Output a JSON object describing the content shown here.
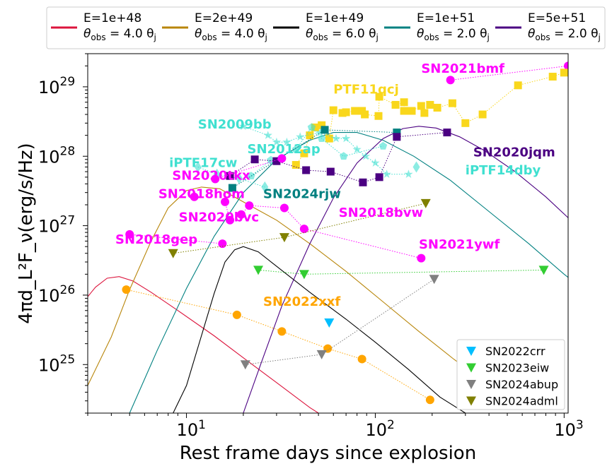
{
  "chart_data": {
    "type": "scatter",
    "xlabel": "Rest frame days since explosion",
    "ylabel": "4πd_L²F_ν(erg/s/Hz)",
    "xscale": "log",
    "yscale": "log",
    "xlim": [
      3,
      1050
    ],
    "ylim": [
      2e+24,
      3e+29
    ],
    "xticks": [
      {
        "value": 10,
        "label": "10",
        "sup": "1"
      },
      {
        "value": 100,
        "label": "10",
        "sup": "2"
      },
      {
        "value": 1000,
        "label": "10",
        "sup": "3"
      }
    ],
    "yticks": [
      {
        "value": 1e+25,
        "label": "10",
        "sup": "25"
      },
      {
        "value": 1e+26,
        "label": "10",
        "sup": "26"
      },
      {
        "value": 1e+27,
        "label": "10",
        "sup": "27"
      },
      {
        "value": 1e+28,
        "label": "10",
        "sup": "28"
      },
      {
        "value": 1e+29,
        "label": "10",
        "sup": "29"
      }
    ],
    "models": [
      {
        "name": "E=1e+48",
        "theta": "θobs = 4.0 θj",
        "color": "#dc143c",
        "points": [
          [
            3,
            9.5e+25
          ],
          [
            3.3,
            1.3e+26
          ],
          [
            3.8,
            1.75e+26
          ],
          [
            4.4,
            1.85e+26
          ],
          [
            5.2,
            1.6e+26
          ],
          [
            6.5,
            1.1e+26
          ],
          [
            9,
            6e+25
          ],
          [
            14,
            2.6e+25
          ],
          [
            20,
            1.25e+25
          ],
          [
            30,
            5.5e+24
          ],
          [
            45,
            2.4e+24
          ],
          [
            50,
            2e+24
          ]
        ]
      },
      {
        "name": "E=2e+49",
        "theta": "θobs = 4.0 θj",
        "color": "#b8860b",
        "points": [
          [
            3,
            5e+24
          ],
          [
            4,
            2.5e+25
          ],
          [
            5,
            1.2e+26
          ],
          [
            6.5,
            6e+26
          ],
          [
            8,
            1.8e+27
          ],
          [
            10,
            3.2e+27
          ],
          [
            12,
            3.6e+27
          ],
          [
            15,
            3.4e+27
          ],
          [
            20,
            2.2e+27
          ],
          [
            30,
            1.2e+27
          ],
          [
            45,
            5.5e+26
          ],
          [
            70,
            2.2e+26
          ],
          [
            110,
            8e+25
          ],
          [
            170,
            3e+25
          ],
          [
            260,
            1.2e+25
          ],
          [
            400,
            5e+24
          ],
          [
            500,
            3e+24
          ]
        ]
      },
      {
        "name": "E=1e+49",
        "theta": "θobs = 6.0 θj",
        "color": "#000000",
        "points": [
          [
            8.5,
            2e+24
          ],
          [
            10,
            5e+24
          ],
          [
            12,
            2.6e+25
          ],
          [
            14,
            1.05e+26
          ],
          [
            16,
            3e+26
          ],
          [
            18,
            4.5e+26
          ],
          [
            20,
            5e+26
          ],
          [
            24,
            4.2e+26
          ],
          [
            30,
            2.6e+26
          ],
          [
            45,
            1.1e+26
          ],
          [
            70,
            4.5e+25
          ],
          [
            100,
            2.1e+25
          ],
          [
            150,
            8.5e+24
          ],
          [
            220,
            3.4e+24
          ],
          [
            300,
            2e+24
          ]
        ]
      },
      {
        "name": "E=1e+51",
        "theta": "θobs = 2.0 θj",
        "color": "#008080",
        "points": [
          [
            5,
            2e+24
          ],
          [
            7,
            1.6e+25
          ],
          [
            10,
            1.25e+26
          ],
          [
            14,
            7e+26
          ],
          [
            20,
            3e+27
          ],
          [
            30,
            9e+27
          ],
          [
            45,
            1.7e+28
          ],
          [
            60,
            2.2e+28
          ],
          [
            80,
            2.2e+28
          ],
          [
            110,
            1.7e+28
          ],
          [
            160,
            1e+28
          ],
          [
            250,
            4.5e+27
          ],
          [
            400,
            1.6e+27
          ],
          [
            650,
            5.5e+26
          ],
          [
            1000,
            2e+26
          ],
          [
            1050,
            1.8e+26
          ]
        ]
      },
      {
        "name": "E=5e+51",
        "theta": "θobs = 2.0 θj",
        "color": "#4b0082",
        "points": [
          [
            20,
            2e+24
          ],
          [
            25,
            1.1e+25
          ],
          [
            32,
            7e+25
          ],
          [
            45,
            5.5e+26
          ],
          [
            60,
            2.5e+27
          ],
          [
            80,
            8e+27
          ],
          [
            110,
            1.8e+28
          ],
          [
            140,
            2.5e+28
          ],
          [
            170,
            2.7e+28
          ],
          [
            210,
            2.55e+28
          ],
          [
            280,
            1.9e+28
          ],
          [
            380,
            1.2e+28
          ],
          [
            550,
            6e+27
          ],
          [
            800,
            2.6e+27
          ],
          [
            1050,
            1.3e+27
          ]
        ]
      }
    ],
    "series": [
      {
        "name": "SN2021bmf",
        "color": "#ff00ff",
        "marker": "circle",
        "line": true,
        "points": [
          [
            250,
            1.25e+29
          ],
          [
            1050,
            2e+29
          ]
        ]
      },
      {
        "name": "PTF11qcj",
        "color": "#f9d71c",
        "marker": "square",
        "line": true,
        "points": [
          [
            38,
            7.5e+27
          ],
          [
            42,
            1.1e+28
          ],
          [
            45,
            2e+28
          ],
          [
            48,
            2.6e+28
          ],
          [
            52,
            2.8e+28
          ],
          [
            57,
            1.8e+28
          ],
          [
            60,
            4.6e+28
          ],
          [
            67,
            4.2e+28
          ],
          [
            70,
            4.3e+28
          ],
          [
            78,
            4.5e+28
          ],
          [
            85,
            4.5e+28
          ],
          [
            88,
            4e+28
          ],
          [
            104,
            3.8e+28
          ],
          [
            105,
            7.2e+28
          ],
          [
            128,
            5.5e+28
          ],
          [
            142,
            6e+28
          ],
          [
            142,
            4.5e+28
          ],
          [
            156,
            4.5e+28
          ],
          [
            175,
            5.3e+28
          ],
          [
            182,
            4.2e+28
          ],
          [
            195,
            5.5e+28
          ],
          [
            213,
            5e+28
          ],
          [
            256,
            5.8e+28
          ],
          [
            300,
            3e+28
          ],
          [
            370,
            4e+28
          ],
          [
            570,
            1.05e+29
          ],
          [
            870,
            1.4e+29
          ],
          [
            1000,
            1.6e+29
          ]
        ]
      },
      {
        "name": "SN2009bb",
        "color": "#40e0d0",
        "marker": "star",
        "line": true,
        "points": [
          [
            20,
            2.7e+28
          ],
          [
            27,
            2e+28
          ],
          [
            30,
            1.6e+28
          ],
          [
            34,
            1.6e+28
          ],
          [
            40,
            1.9e+28
          ],
          [
            51,
            2.2e+28
          ],
          [
            62,
            1.8e+28
          ],
          [
            70,
            1.8e+28
          ],
          [
            80,
            1.25e+28
          ],
          [
            89,
            1e+28
          ],
          [
            100,
            8e+27
          ],
          [
            115,
            5.5e+27
          ],
          [
            150,
            5.5e+27
          ]
        ]
      },
      {
        "name": "SN2012ap",
        "color": "#40e0d0",
        "marker": "pentagon",
        "line": true,
        "points": [
          [
            22,
            5.2e+27
          ],
          [
            28,
            8.8e+27
          ],
          [
            38,
            1.25e+28
          ],
          [
            46,
            2.6e+28
          ],
          [
            52,
            1.8e+28
          ],
          [
            68,
            1e+28
          ],
          [
            110,
            1.4e+28
          ]
        ]
      },
      {
        "name": "iPTF17cw",
        "color": "#40e0d0",
        "marker": "diamond",
        "line": true,
        "points": [
          [
            11.5,
            7e+27
          ],
          [
            14.5,
            5.5e+27
          ],
          [
            19,
            4.8e+27
          ],
          [
            26,
            3.6e+27
          ]
        ]
      },
      {
        "name": "iPTF14dby",
        "color": "#40e0d0",
        "marker": "diamond",
        "line": false,
        "points": [
          [
            165,
            7e+27
          ]
        ]
      },
      {
        "name": "SN2024rjw",
        "color": "#008080",
        "marker": "square",
        "line": true,
        "points": [
          [
            17.5,
            3.5e+27
          ],
          [
            54,
            2.4e+28
          ],
          [
            130,
            2.2e+28
          ]
        ]
      },
      {
        "name": "SN2020jqm",
        "color": "#4b0082",
        "marker": "square",
        "line": true,
        "points": [
          [
            17,
            5.2e+27
          ],
          [
            23,
            9e+27
          ],
          [
            30,
            8.5e+27
          ],
          [
            43,
            6.3e+27
          ],
          [
            58,
            6e+27
          ],
          [
            86,
            4.2e+27
          ],
          [
            105,
            5e+27
          ],
          [
            130,
            1.9e+28
          ],
          [
            240,
            2.2e+28
          ]
        ]
      },
      {
        "name": "SN2020tkx",
        "color": "#ff00ff",
        "marker": "circle",
        "line": true,
        "points": [
          [
            14.2,
            4.7e+27
          ],
          [
            32,
            9.3e+27
          ]
        ]
      },
      {
        "name": "SN2018hom",
        "color": "#ff00ff",
        "marker": "circle",
        "line": false,
        "points": [
          [
            11,
            2.6e+27
          ]
        ]
      },
      {
        "name": "SN2020bvc",
        "color": "#ff00ff",
        "marker": "circle",
        "line": true,
        "points": [
          [
            16,
            2.2e+27
          ],
          [
            17,
            1.2e+27
          ],
          [
            19.5,
            1.45e+27
          ],
          [
            21.5,
            1.95e+27
          ],
          [
            33,
            1.8e+27
          ],
          [
            42,
            9e+26
          ],
          [
            175,
            3.4e+26
          ]
        ]
      },
      {
        "name": "SN2018gep",
        "color": "#ff00ff",
        "marker": "circle",
        "line": true,
        "points": [
          [
            5,
            7.5e+26
          ],
          [
            15.5,
            5.5e+26
          ]
        ]
      },
      {
        "name": "SN2022xxf",
        "color": "#ffa500",
        "marker": "circle",
        "line": true,
        "points": [
          [
            4.8,
            1.2e+26
          ],
          [
            18.5,
            5.2e+25
          ],
          [
            32,
            3e+25
          ],
          [
            56,
            1.7e+25
          ],
          [
            85,
            1.2e+25
          ],
          [
            195,
            3.1e+24
          ]
        ]
      },
      {
        "name": "SN2022crr",
        "color": "#00bfff",
        "marker": "triangle-down",
        "line": false,
        "points": [
          [
            57,
            4e+25
          ]
        ]
      },
      {
        "name": "SN2023eiw",
        "color": "#32cd32",
        "marker": "triangle-down",
        "line": true,
        "points": [
          [
            24,
            2.3e+26
          ],
          [
            42,
            2e+26
          ],
          [
            780,
            2.3e+26
          ]
        ]
      },
      {
        "name": "SN2024abup",
        "color": "#808080",
        "marker": "triangle-down",
        "line": true,
        "points": [
          [
            20.5,
            1e+25
          ],
          [
            52,
            1.4e+25
          ],
          [
            205,
            1.7e+26
          ]
        ]
      },
      {
        "name": "SN2024adml",
        "color": "#808000",
        "marker": "triangle-down",
        "line": true,
        "points": [
          [
            8.5,
            4e+26
          ],
          [
            33,
            6.8e+26
          ],
          [
            185,
            2.1e+27
          ]
        ]
      }
    ],
    "annotations": [
      {
        "text": "SN2021bmf",
        "color": "#ff00ff",
        "at": [
          175,
          1.6e+29
        ]
      },
      {
        "text": "PTF11qcj",
        "color": "#f9d71c",
        "at": [
          60,
          8e+28
        ]
      },
      {
        "text": "SN2009bb",
        "color": "#40e0d0",
        "at": [
          11.5,
          2.5e+28
        ]
      },
      {
        "text": "SN2012ap",
        "color": "#40e0d0",
        "at": [
          21,
          1.1e+28
        ]
      },
      {
        "text": "iPTF17cw",
        "color": "#40e0d0",
        "at": [
          8.1,
          7e+27
        ]
      },
      {
        "text": "SN2020jqm",
        "color": "#4b0082",
        "at": [
          330,
          1e+28
        ]
      },
      {
        "text": "iPTF14dby",
        "color": "#40e0d0",
        "at": [
          300,
          5.5e+27
        ]
      },
      {
        "text": "SN2020tkx",
        "color": "#ff00ff",
        "at": [
          8.4,
          4.6e+27
        ]
      },
      {
        "text": "SN2018hom",
        "color": "#ff00ff",
        "at": [
          7.1,
          2.5e+27
        ]
      },
      {
        "text": "SN2024rjw",
        "color": "#008080",
        "at": [
          25.5,
          2.5e+27
        ]
      },
      {
        "text": "SN2020bvc",
        "color": "#ff00ff",
        "at": [
          9.1,
          1.15e+27
        ]
      },
      {
        "text": "SN2018bvw",
        "color": "#ff00ff",
        "at": [
          64,
          1.35e+27
        ]
      },
      {
        "text": "SN2018gep",
        "color": "#ff00ff",
        "at": [
          4.2,
          5.5e+26
        ]
      },
      {
        "text": "SN2021ywf",
        "color": "#ff00ff",
        "at": [
          170,
          4.7e+26
        ]
      },
      {
        "text": "SN2022xxf",
        "color": "#ffa500",
        "at": [
          25.5,
          7e+25
        ]
      }
    ],
    "legend_top": [
      {
        "label": "E=1e+48",
        "sublabel_a": "θ",
        "sublabel_sub": "obs",
        "sublabel_b": " = 4.0 θ",
        "sublabel_sub2": "j",
        "color": "#dc143c"
      },
      {
        "label": "E=2e+49",
        "sublabel_a": "θ",
        "sublabel_sub": "obs",
        "sublabel_b": " = 4.0 θ",
        "sublabel_sub2": "j",
        "color": "#b8860b"
      },
      {
        "label": "E=1e+49",
        "sublabel_a": "θ",
        "sublabel_sub": "obs",
        "sublabel_b": " = 6.0 θ",
        "sublabel_sub2": "j",
        "color": "#000000"
      },
      {
        "label": "E=1e+51",
        "sublabel_a": "θ",
        "sublabel_sub": "obs",
        "sublabel_b": " = 2.0 θ",
        "sublabel_sub2": "j",
        "color": "#008080"
      },
      {
        "label": "E=5e+51",
        "sublabel_a": "θ",
        "sublabel_sub": "obs",
        "sublabel_b": " = 2.0 θ",
        "sublabel_sub2": "j",
        "color": "#4b0082"
      }
    ],
    "legend_top_placement": "top",
    "legend_bottom": [
      {
        "label": "SN2022crr",
        "color": "#00bfff"
      },
      {
        "label": "SN2023eiw",
        "color": "#32cd32"
      },
      {
        "label": "SN2024abup",
        "color": "#808080"
      },
      {
        "label": "SN2024adml",
        "color": "#808000"
      }
    ],
    "legend_bottom_placement": "lower-right"
  }
}
